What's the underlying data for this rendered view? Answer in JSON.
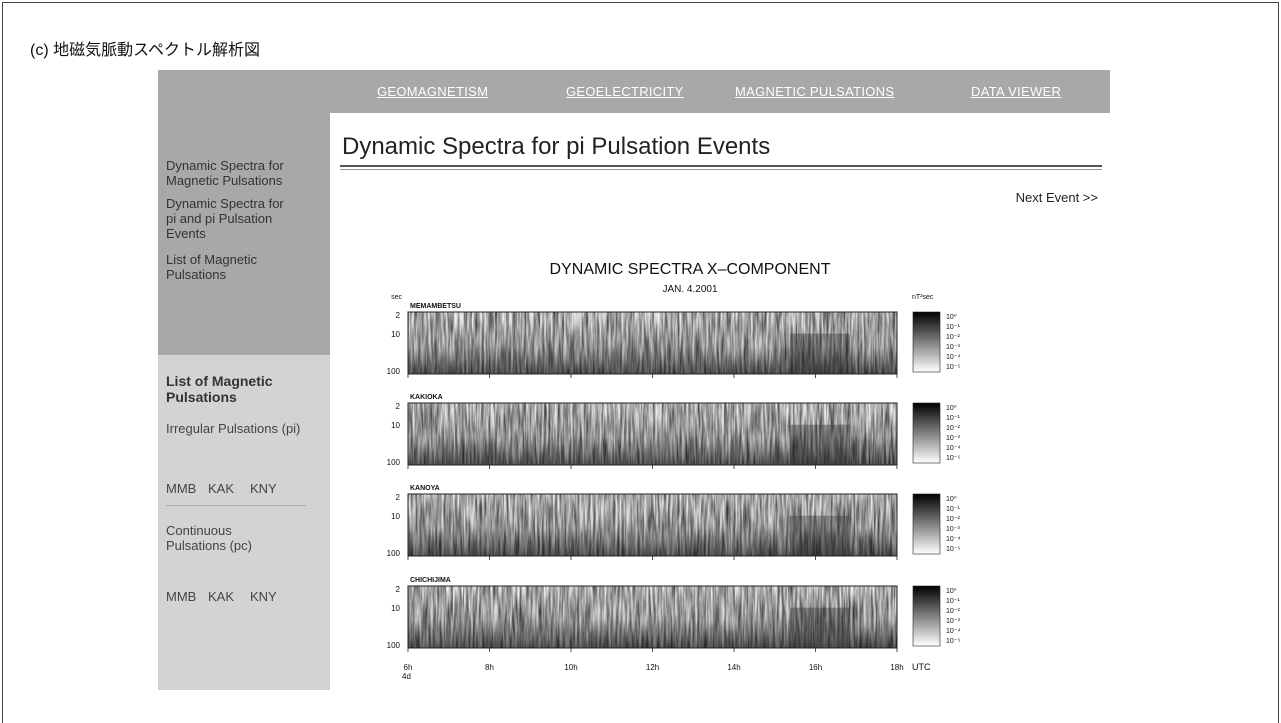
{
  "caption": "(c) 地磁気脈動スペクトル解析図",
  "nav": [
    "GEOMAGNETISM",
    "GEOELECTRICITY",
    "MAGNETIC PULSATIONS",
    "DATA VIEWER"
  ],
  "sidebar": {
    "links": [
      "Dynamic Spectra for Magnetic Pulsations",
      "Dynamic Spectra for pi and pi Pulsation Events",
      "List of Magnetic Pulsations"
    ],
    "section_title": "List of Magnetic Pulsations",
    "groups": [
      {
        "title": "Irregular Pulsations (pi)",
        "stations": [
          "MMB",
          "KAK",
          "KNY"
        ]
      },
      {
        "title": "Continuous Pulsations (pc)",
        "stations": [
          "MMB",
          "KAK",
          "KNY"
        ]
      }
    ]
  },
  "main": {
    "heading": "Dynamic Spectra for pi Pulsation Events",
    "next": "Next Event >>"
  },
  "figure": {
    "title": "DYNAMIC SPECTRA X–COMPONENT",
    "date": "JAN. 4.2001",
    "y_unit": "sec",
    "power_unit": "nT²sec",
    "stations": [
      "MEMAMBETSU",
      "KAKIOKA",
      "KANOYA",
      "CHICHIJIMA"
    ],
    "period_ticks": [
      2,
      10,
      100
    ],
    "colorbar_ticks": [
      "10⁰",
      "10⁻¹",
      "10⁻²",
      "10⁻³",
      "10⁻⁴",
      "10⁻⁵"
    ],
    "time_ticks": [
      "6h",
      "8h",
      "10h",
      "12h",
      "14h",
      "16h",
      "18h"
    ],
    "day": "4d",
    "time_unit": "UTC"
  }
}
